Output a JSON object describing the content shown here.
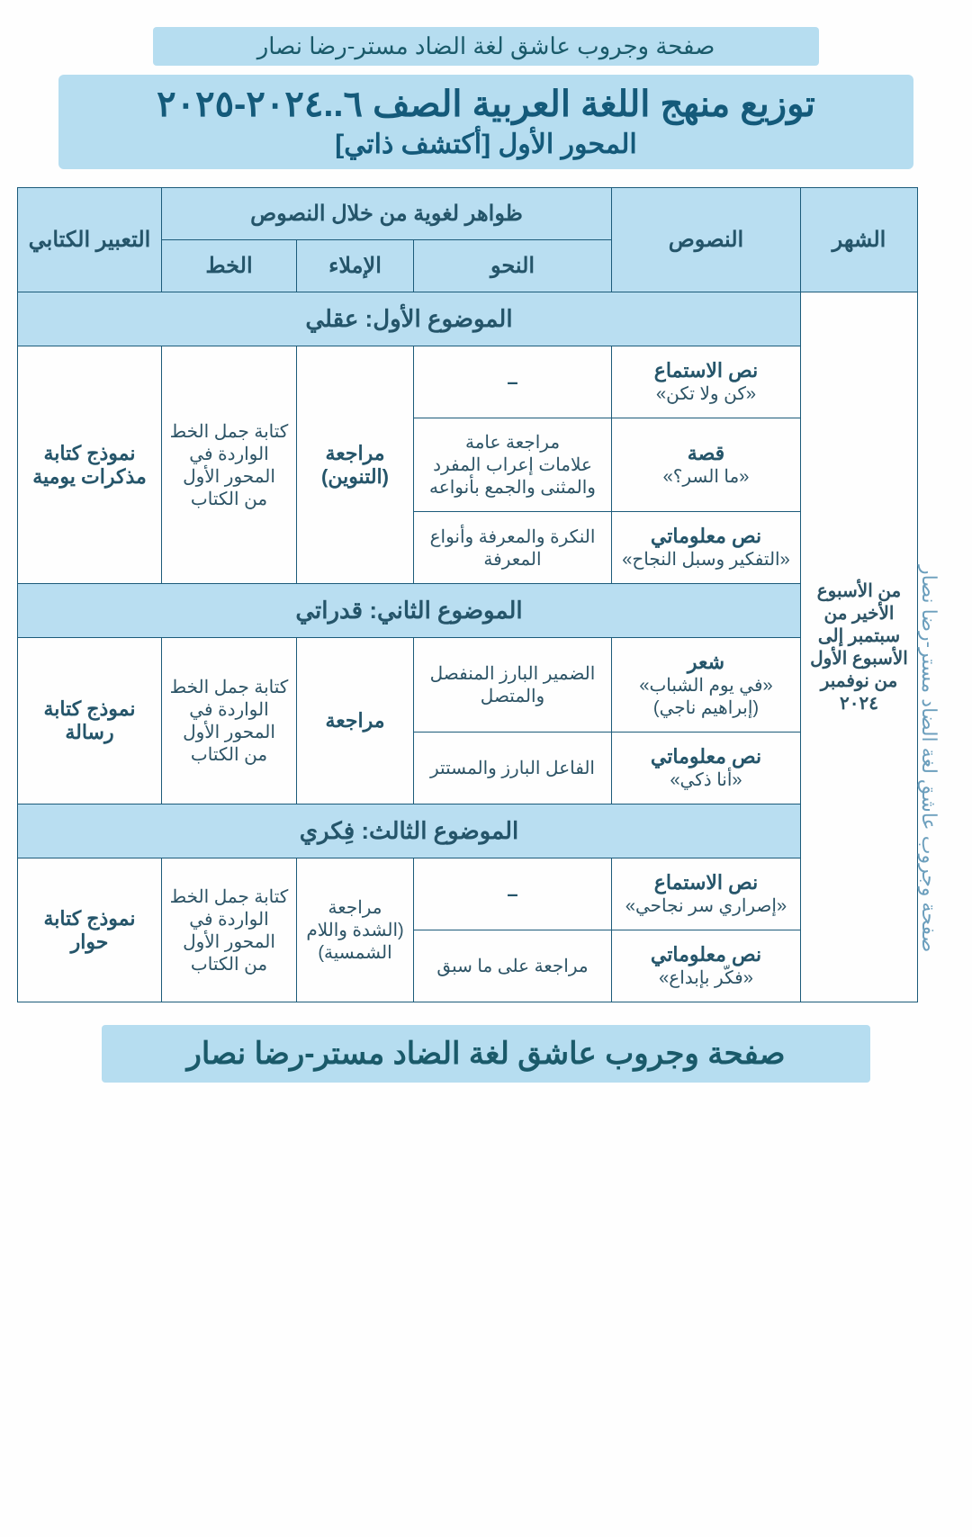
{
  "header_text": "صفحة وجروب عاشق لغة الضاد مستر-رضا نصار",
  "title_line1": "توزيع منهج اللغة العربية الصف ٦..٢٠٢٤-٢٠٢٥",
  "title_line2": "المحور الأول [أكتشف ذاتي]",
  "col": {
    "month": "الشهر",
    "texts": "النصوص",
    "lang_phen": "ظواهر لغوية من خلال النصوص",
    "nahw": "النحو",
    "imla": "الإملاء",
    "khat": "الخط",
    "expr": "التعبير الكتابي"
  },
  "month_cell": "من الأسبوع الأخير من سبتمبر إلى الأسبوع الأول من نوفمبر ٢٠٢٤",
  "topic1": "الموضوع الأول: عقلي",
  "topic2": "الموضوع الثاني: قدراتي",
  "topic3": "الموضوع الثالث: فِكري",
  "t1r1_text_a": "نص الاستماع",
  "t1r1_text_b": "«كن ولا تكن»",
  "t1r1_nahw": "–",
  "t1r2_text_a": "قصة",
  "t1r2_text_b": "«ما السر؟»",
  "t1r2_nahw": "مراجعة عامة\nعلامات إعراب المفرد والمثنى والجمع بأنواعه",
  "t1r3_text_a": "نص معلوماتي",
  "t1r3_text_b": "«التفكير وسبل النجاح»",
  "t1r3_nahw": "النكرة والمعرفة وأنواع المعرفة",
  "t1_imla": "مراجعة (التنوين)",
  "t1_khat": "كتابة جمل الخط الواردة في المحور الأول من الكتاب",
  "t1_expr": "نموذج كتابة مذكرات يومية",
  "t2r1_text_a": "شعر",
  "t2r1_text_b": "«في يوم الشباب»",
  "t2r1_text_c": "(إبراهيم ناجي)",
  "t2r1_nahw": "الضمير البارز المنفصل والمتصل",
  "t2r2_text_a": "نص معلوماتي",
  "t2r2_text_b": "«أنا ذكي»",
  "t2r2_nahw": "الفاعل البارز والمستتر",
  "t2_imla": "مراجعة",
  "t2_khat": "كتابة جمل الخط الواردة في المحور الأول من الكتاب",
  "t2_expr": "نموذج كتابة رسالة",
  "t3r1_text_a": "نص الاستماع",
  "t3r1_text_b": "«إصراري سر نجاحي»",
  "t3r1_nahw": "–",
  "t3r2_text_a": "نص معلوماتي",
  "t3r2_text_b": "«فكّر بإبداع»",
  "t3r2_nahw": "مراجعة على ما سبق",
  "t3_imla": "مراجعة (الشدة واللام الشمسية)",
  "t3_khat": "كتابة جمل الخط الواردة في المحور الأول من الكتاب",
  "t3_expr": "نموذج كتابة حوار",
  "watermark": "صفحة وجروب عاشق لغة الضاد مستر-رضا نصار",
  "footer_text": "صفحة وجروب عاشق لغة الضاد مستر-رضا نصار"
}
